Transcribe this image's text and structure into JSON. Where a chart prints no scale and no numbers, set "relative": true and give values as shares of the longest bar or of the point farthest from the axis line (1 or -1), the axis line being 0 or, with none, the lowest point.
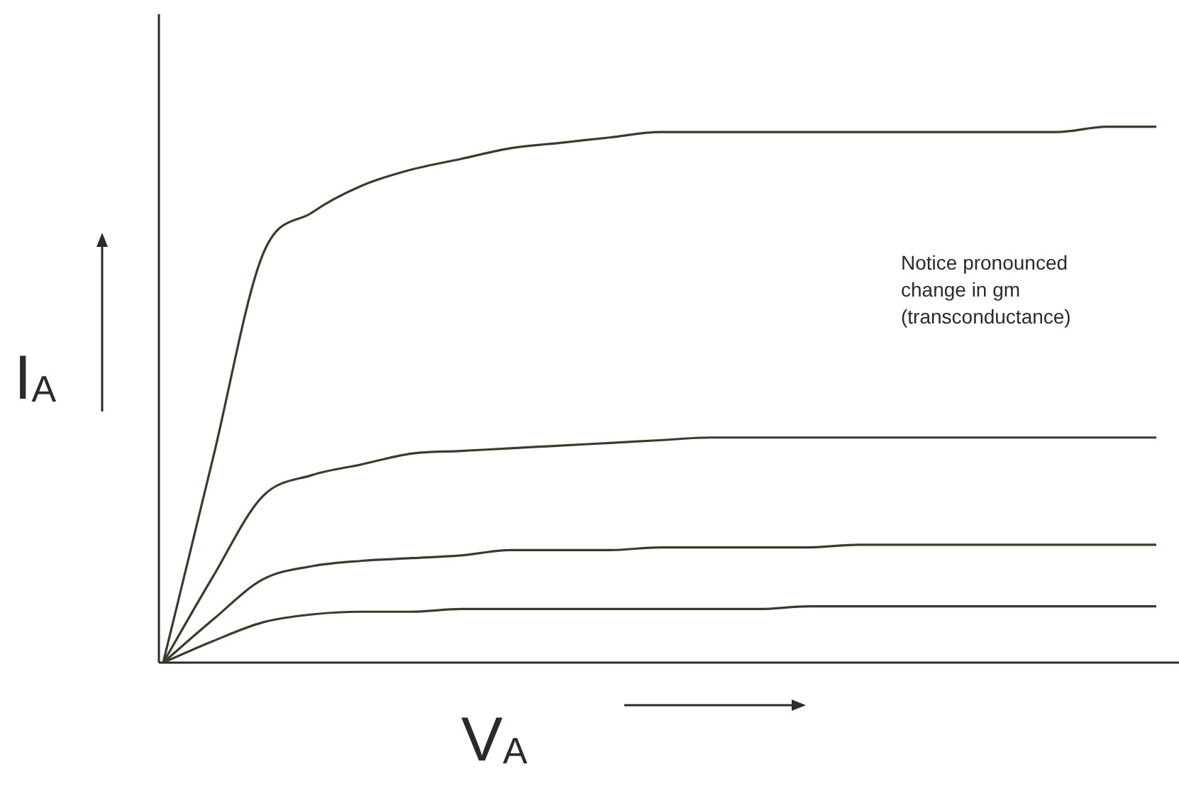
{
  "chart_data": {
    "type": "line",
    "relative": true,
    "xlabel": "V$_{A}$",
    "ylabel": "I$_{A}$",
    "categories": [
      null,
      null,
      null,
      null,
      null,
      null,
      null,
      null,
      null,
      null,
      null,
      null,
      null,
      null,
      null,
      null,
      null,
      null,
      null,
      null,
      null
    ],
    "series": [
      {
        "color": "#3b3b2c",
        "values": [
          0,
          0.38,
          0.76,
          0.84,
          0.89,
          0.92,
          0.94,
          0.96,
          0.97,
          0.98,
          0.99,
          0.99,
          0.99,
          0.99,
          0.99,
          0.99,
          0.99,
          0.99,
          0.99,
          1,
          1
        ]
      },
      {
        "color": "#3b3b2c",
        "values": [
          0,
          0.16,
          0.31,
          0.35,
          0.37,
          0.39,
          0.395,
          0.4,
          0.405,
          0.41,
          0.415,
          0.42,
          0.42,
          0.42,
          0.42,
          0.42,
          0.42,
          0.42,
          0.42,
          0.42,
          0.42
        ]
      },
      {
        "color": "#3b3b2c",
        "values": [
          0,
          0.08,
          0.155,
          0.18,
          0.19,
          0.195,
          0.2,
          0.21,
          0.21,
          0.21,
          0.215,
          0.215,
          0.215,
          0.215,
          0.22,
          0.22,
          0.22,
          0.22,
          0.22,
          0.22,
          0.22
        ]
      },
      {
        "color": "#3b3b2c",
        "values": [
          0,
          0.04,
          0.075,
          0.09,
          0.095,
          0.095,
          0.1,
          0.1,
          0.1,
          0.1,
          0.1,
          0.1,
          0.1,
          0.105,
          0.105,
          0.105,
          0.105,
          0.105,
          0.105,
          0.105,
          0.105
        ]
      }
    ],
    "annotations": [
      "Notice pronounced change in gm (transconductance)"
    ],
    "legend": false,
    "marker": "none",
    "line_style": "solid"
  }
}
